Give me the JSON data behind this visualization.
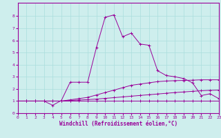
{
  "xlabel": "Windchill (Refroidissement éolien,°C)",
  "bg_color": "#ceeeed",
  "line_color": "#990099",
  "grid_color": "#aadddd",
  "xmin": 0,
  "xmax": 23,
  "ymin": 0,
  "ymax": 9,
  "yticks": [
    0,
    1,
    2,
    3,
    4,
    5,
    6,
    7,
    8
  ],
  "xticks": [
    0,
    1,
    2,
    3,
    4,
    5,
    6,
    7,
    8,
    9,
    10,
    11,
    12,
    13,
    14,
    15,
    16,
    17,
    18,
    19,
    20,
    21,
    22,
    23
  ],
  "series1_x": [
    0,
    1,
    2,
    3,
    4,
    5,
    6,
    7,
    8,
    9,
    10,
    11,
    12,
    13,
    14,
    15,
    16,
    17,
    18,
    19,
    20,
    21,
    22,
    23
  ],
  "series1_y": [
    1.0,
    1.0,
    1.0,
    1.0,
    1.0,
    1.0,
    1.0,
    1.0,
    1.0,
    1.0,
    1.0,
    1.0,
    1.0,
    1.0,
    1.0,
    1.0,
    1.0,
    1.0,
    1.0,
    1.0,
    1.0,
    1.0,
    1.0,
    1.0
  ],
  "series2_x": [
    0,
    1,
    2,
    3,
    4,
    5,
    6,
    7,
    8,
    9,
    10,
    11,
    12,
    13,
    14,
    15,
    16,
    17,
    18,
    19,
    20,
    21,
    22,
    23
  ],
  "series2_y": [
    1.0,
    1.0,
    1.0,
    1.0,
    1.0,
    1.0,
    1.05,
    1.08,
    1.12,
    1.16,
    1.22,
    1.28,
    1.34,
    1.4,
    1.46,
    1.52,
    1.58,
    1.64,
    1.7,
    1.75,
    1.8,
    1.85,
    1.88,
    1.9
  ],
  "series3_x": [
    0,
    1,
    2,
    3,
    4,
    5,
    6,
    7,
    8,
    9,
    10,
    11,
    12,
    13,
    14,
    15,
    16,
    17,
    18,
    19,
    20,
    21,
    22,
    23
  ],
  "series3_y": [
    1.0,
    1.0,
    1.0,
    1.0,
    1.0,
    1.0,
    1.1,
    1.2,
    1.3,
    1.5,
    1.7,
    1.9,
    2.1,
    2.3,
    2.4,
    2.5,
    2.6,
    2.65,
    2.68,
    2.7,
    2.72,
    2.75,
    2.75,
    2.75
  ],
  "series4_x": [
    0,
    1,
    2,
    3,
    4,
    5,
    6,
    7,
    8,
    9,
    10,
    11,
    12,
    13,
    14,
    15,
    16,
    17,
    18,
    19,
    20,
    21,
    22,
    23
  ],
  "series4_y": [
    1.0,
    1.0,
    1.0,
    1.0,
    0.65,
    1.05,
    2.55,
    2.55,
    2.55,
    5.4,
    7.9,
    8.1,
    6.3,
    6.6,
    5.7,
    5.6,
    3.5,
    3.1,
    3.0,
    2.85,
    2.5,
    1.45,
    1.6,
    1.2
  ]
}
